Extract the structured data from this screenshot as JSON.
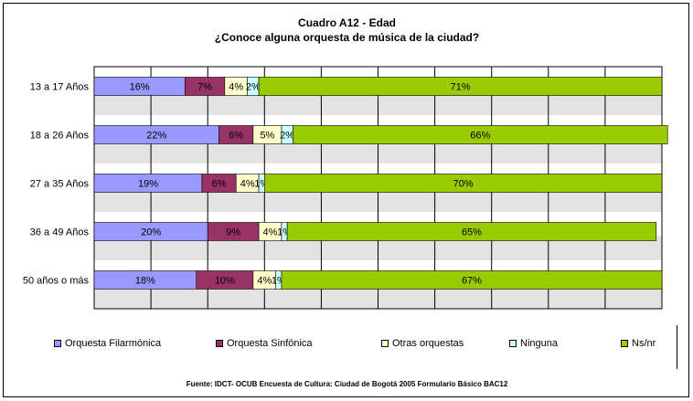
{
  "chart_data": {
    "type": "bar",
    "orientation": "horizontal",
    "stacked": true,
    "title": "Cuadro A12 - Edad",
    "subtitle": "¿Conoce alguna orquesta de música de la ciudad?",
    "categories": [
      "13 a 17 Años",
      "18 a 26 Años",
      "27 a 35 Años",
      "36 a 49 Años",
      "50 años o más"
    ],
    "series": [
      {
        "name": "Orquesta Filarmónica",
        "color": "#9999ff",
        "values": [
          16,
          22,
          19,
          20,
          18
        ],
        "labels": [
          "16%",
          "22%",
          "19%",
          "20%",
          "18%"
        ]
      },
      {
        "name": "Orquesta Sinfónica",
        "color": "#993366",
        "values": [
          7,
          6,
          6,
          9,
          10
        ],
        "labels": [
          "7%",
          "6%",
          "6%",
          "9%",
          "10%"
        ]
      },
      {
        "name": "Otras orquestas",
        "color": "#ffffcc",
        "values": [
          4,
          5,
          4,
          4,
          4
        ],
        "labels": [
          "4%",
          "5%",
          "4%",
          "4%",
          "4%"
        ]
      },
      {
        "name": "Ninguna",
        "color": "#ccffff",
        "values": [
          2,
          2,
          1,
          1,
          1
        ],
        "labels": [
          "2%",
          "2%",
          "1%",
          "1%",
          "1%"
        ]
      },
      {
        "name": "Ns/nr",
        "color": "#99cc00",
        "values": [
          71,
          66,
          70,
          65,
          67
        ],
        "labels": [
          "71%",
          "66%",
          "70%",
          "65%",
          "67%"
        ]
      }
    ],
    "xlim": [
      0,
      100
    ],
    "grid": true,
    "legend_position": "bottom",
    "source": "Fuente: IDCT- OCUB Encuesta de Cultura: Ciudad de Bogotá 2005 Formulario Básico BAC12"
  }
}
